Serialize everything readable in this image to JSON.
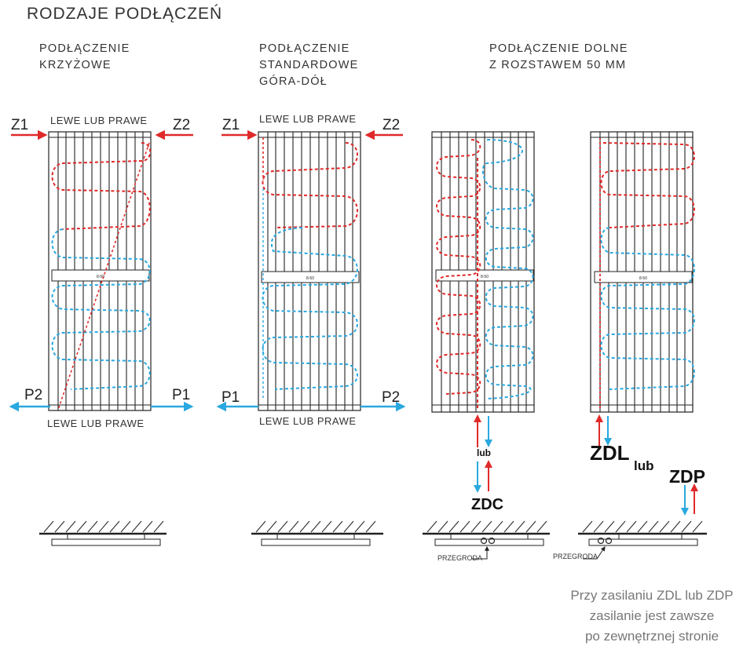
{
  "title": "RODZAJE PODŁĄCZEŃ",
  "panels": [
    {
      "heading": [
        "PODŁĄCZENIE",
        "KRZYŻOWE"
      ],
      "top_label": "LEWE LUB PRAWE",
      "bottom_label": "LEWE LUB PRAWE",
      "top_left": "Z1",
      "top_right": "Z2",
      "bottom_left": "P2",
      "bottom_right": "P1"
    },
    {
      "heading": [
        "PODŁĄCZENIE",
        "STANDARDOWE",
        "GÓRA-DÓŁ"
      ],
      "top_label": "LEWE LUB PRAWE",
      "bottom_label": "LEWE LUB PRAWE",
      "top_left": "Z1",
      "top_right": "Z2",
      "bottom_left": "P1",
      "bottom_right": "P2"
    },
    {
      "heading": [
        "PODŁĄCZENIE DOLNE",
        "Z ROZSTAWEM 50 MM"
      ],
      "center_lub": "lub",
      "center_code": "ZDC",
      "side_left_code": "ZDL",
      "side_lub": "lub",
      "side_right_code": "ZDP",
      "partition_label": "PRZEGRODA"
    }
  ],
  "bar_label": "8-50",
  "note": [
    "Przy zasilaniu ZDL lub ZDP",
    "zasilanie jest zawsze",
    "po zewnętrznej stronie"
  ],
  "colors": {
    "supply": "#e02a2a",
    "return": "#2aa8e0",
    "frame": "#222222"
  }
}
